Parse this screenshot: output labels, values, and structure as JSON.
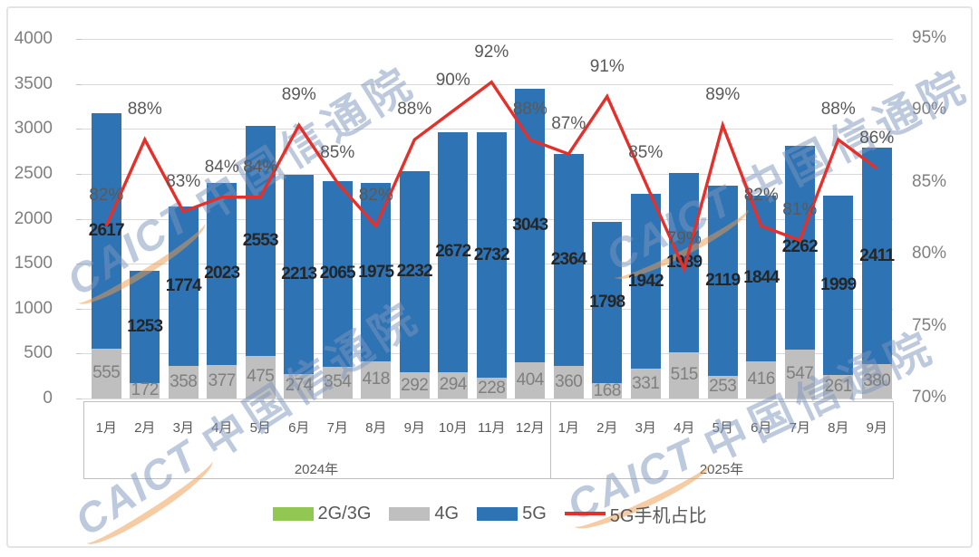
{
  "watermark": {
    "latin": "CAICT",
    "cn": "中国信通院"
  },
  "axes": {
    "left_ticks": [
      "4000",
      "3500",
      "3000",
      "2500",
      "2000",
      "1500",
      "1000",
      "500",
      "0"
    ],
    "right_ticks": [
      "95%",
      "90%",
      "85%",
      "80%",
      "75%",
      "70%"
    ]
  },
  "chart_data": {
    "type": "bar",
    "subtype": "stacked-bar-with-line",
    "categories": [
      "1月",
      "2月",
      "3月",
      "4月",
      "5月",
      "6月",
      "7月",
      "8月",
      "9月",
      "10月",
      "11月",
      "12月",
      "1月",
      "2月",
      "3月",
      "4月",
      "5月",
      "6月",
      "7月",
      "8月",
      "9月"
    ],
    "groups": [
      {
        "label": "2024年",
        "span": 12
      },
      {
        "label": "2025年",
        "span": 9
      }
    ],
    "series": [
      {
        "name": "2G/3G",
        "type": "bar",
        "color": "#90c853",
        "values": [
          0,
          0,
          0,
          0,
          0,
          0,
          0,
          0,
          0,
          0,
          0,
          0,
          0,
          0,
          0,
          0,
          0,
          0,
          0,
          0,
          0
        ]
      },
      {
        "name": "4G",
        "type": "bar",
        "color": "#bfbfbf",
        "values": [
          555,
          172,
          358,
          377,
          475,
          274,
          354,
          418,
          292,
          294,
          228,
          404,
          360,
          168,
          331,
          515,
          253,
          416,
          547,
          261,
          380
        ]
      },
      {
        "name": "5G",
        "type": "bar",
        "color": "#2e74b5",
        "values": [
          2617,
          1253,
          1774,
          2023,
          2553,
          2213,
          2065,
          1975,
          2232,
          2672,
          2732,
          3043,
          2364,
          1798,
          1942,
          1989,
          2119,
          1844,
          2262,
          1999,
          2411
        ]
      },
      {
        "name": "5G手机占比",
        "type": "line",
        "color": "#e4302a",
        "axis": "right",
        "values": [
          82,
          88,
          83,
          84,
          84,
          89,
          85,
          82,
          88,
          90,
          92,
          88,
          87,
          91,
          85,
          79,
          89,
          82,
          81,
          88,
          86
        ]
      }
    ],
    "left_axis": {
      "min": 0,
      "max": 4000,
      "step": 500
    },
    "right_axis": {
      "min": 70,
      "max": 95,
      "step": 5,
      "format": "percent"
    },
    "grid": "horizontal",
    "legend_position": "bottom",
    "title": ""
  },
  "legend": [
    {
      "label": "2G/3G",
      "color": "#90c853",
      "swatch": "bar"
    },
    {
      "label": "4G",
      "color": "#bfbfbf",
      "swatch": "bar"
    },
    {
      "label": "5G",
      "color": "#2e74b5",
      "swatch": "bar"
    },
    {
      "label": "5G手机占比",
      "color": "#e4302a",
      "swatch": "line"
    }
  ]
}
